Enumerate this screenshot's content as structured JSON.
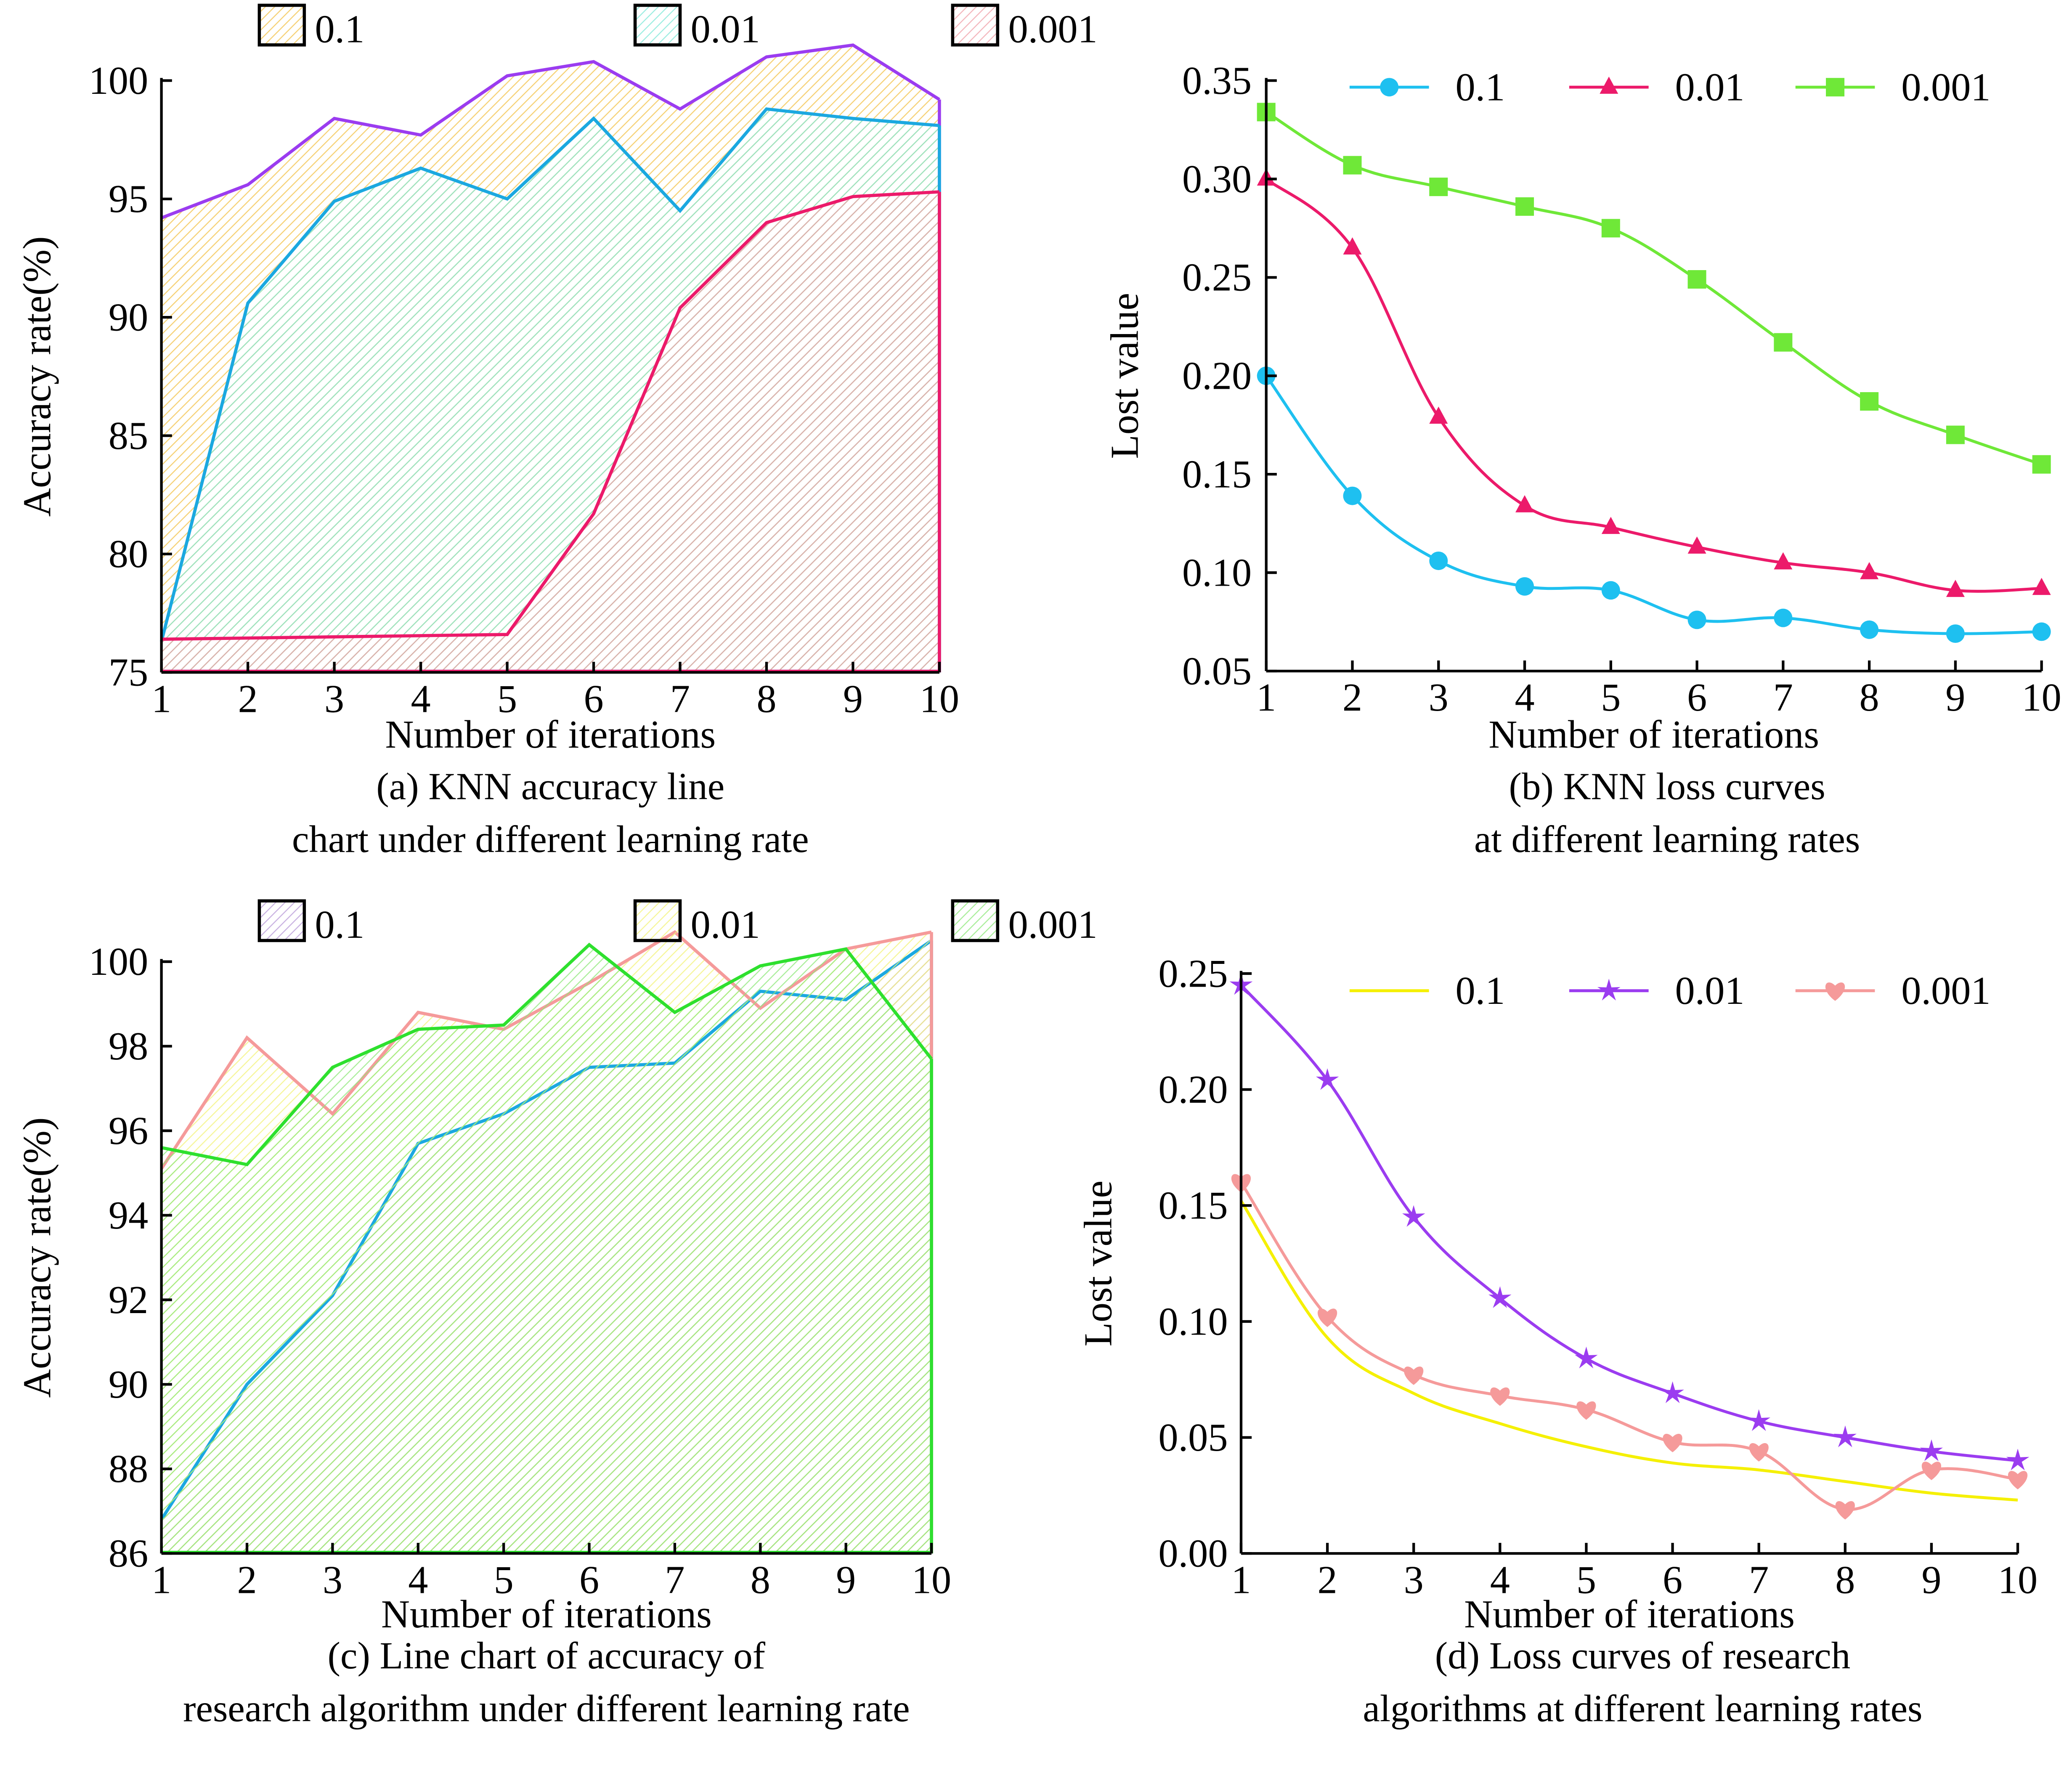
{
  "chart_data": [
    {
      "id": "a",
      "type": "area",
      "caption": [
        "(a) KNN accuracy line",
        "chart under different learning rate"
      ],
      "xlabel": "Number of iterations",
      "ylabel": "Accuracy rate(%)",
      "x": [
        1,
        2,
        3,
        4,
        5,
        6,
        7,
        8,
        9,
        10
      ],
      "xticks": [
        "1",
        "2",
        "3",
        "4",
        "5",
        "6",
        "7",
        "8",
        "9",
        "10"
      ],
      "ylim": [
        75,
        100
      ],
      "yticks": [
        75,
        80,
        85,
        90,
        95,
        100
      ],
      "ytick_labels": [
        "75",
        "80",
        "85",
        "90",
        "95",
        "100"
      ],
      "legend_position": "top",
      "series": [
        {
          "name": "0.1",
          "line_color": "#9b3cf0",
          "fill_color": "#f2c24a",
          "values": [
            94.2,
            95.6,
            98.4,
            97.7,
            100.2,
            100.8,
            98.8,
            101.0,
            101.5,
            99.2
          ]
        },
        {
          "name": "0.01",
          "line_color": "#1ba8e0",
          "fill_color": "#7fe8d8",
          "values": [
            76.3,
            90.6,
            94.9,
            96.3,
            95.0,
            98.4,
            94.5,
            98.8,
            98.4,
            98.1
          ]
        },
        {
          "name": "0.001",
          "line_color": "#ec1a6a",
          "fill_color": "#f0a0a8",
          "values": [
            76.4,
            76.45,
            76.5,
            76.55,
            76.6,
            81.7,
            90.4,
            94.0,
            95.1,
            95.3
          ]
        }
      ]
    },
    {
      "id": "b",
      "type": "line",
      "caption": [
        "(b) KNN loss curves",
        "at different learning rates"
      ],
      "xlabel": "Number of iterations",
      "ylabel": "Lost value",
      "x": [
        1,
        2,
        3,
        4,
        5,
        6,
        7,
        8,
        9,
        10
      ],
      "xticks": [
        "1",
        "2",
        "3",
        "4",
        "5",
        "6",
        "7",
        "8",
        "9",
        "10"
      ],
      "ylim": [
        0.05,
        0.35
      ],
      "yticks": [
        0.05,
        0.1,
        0.15,
        0.2,
        0.25,
        0.3,
        0.35
      ],
      "ytick_labels": [
        "0.05",
        "0.10",
        "0.15",
        "0.20",
        "0.25",
        "0.30",
        "0.35"
      ],
      "legend_position": "top",
      "series": [
        {
          "name": "0.1",
          "color": "#1ec0f0",
          "marker": "circle",
          "values": [
            0.2,
            0.139,
            0.106,
            0.093,
            0.091,
            0.076,
            0.077,
            0.071,
            0.069,
            0.07
          ]
        },
        {
          "name": "0.01",
          "color": "#ec1a6a",
          "marker": "triangle",
          "values": [
            0.3,
            0.265,
            0.179,
            0.134,
            0.123,
            0.113,
            0.105,
            0.1,
            0.091,
            0.092
          ]
        },
        {
          "name": "0.001",
          "color": "#6fe838",
          "marker": "square",
          "values": [
            0.334,
            0.307,
            0.296,
            0.286,
            0.275,
            0.249,
            0.217,
            0.187,
            0.17,
            0.155
          ]
        }
      ]
    },
    {
      "id": "c",
      "type": "area",
      "caption": [
        "(c) Line chart of accuracy of",
        "research algorithm under different learning rate"
      ],
      "xlabel": "Number of iterations",
      "ylabel": "Accuracy rate(%)",
      "x": [
        1,
        2,
        3,
        4,
        5,
        6,
        7,
        8,
        9,
        10
      ],
      "xticks": [
        "1",
        "2",
        "3",
        "4",
        "5",
        "6",
        "7",
        "8",
        "9",
        "10"
      ],
      "ylim": [
        86,
        100
      ],
      "yticks": [
        86,
        88,
        90,
        92,
        94,
        96,
        98,
        100
      ],
      "ytick_labels": [
        "86",
        "88",
        "90",
        "92",
        "94",
        "96",
        "98",
        "100"
      ],
      "legend_position": "top",
      "series": [
        {
          "name": "0.1",
          "line_color": "#1ba8e0",
          "fill_color": "#b89ad8",
          "values": [
            86.8,
            90.0,
            92.1,
            95.7,
            96.4,
            97.5,
            97.6,
            99.3,
            99.1,
            100.5
          ]
        },
        {
          "name": "0.01",
          "line_color": "#f59a9a",
          "fill_color": "#f2f27a",
          "values": [
            95.1,
            98.2,
            96.4,
            98.8,
            98.4,
            99.5,
            100.7,
            98.9,
            100.3,
            100.7
          ]
        },
        {
          "name": "0.001",
          "line_color": "#2ee02e",
          "fill_color": "#8ee87a",
          "values": [
            95.6,
            95.2,
            97.5,
            98.4,
            98.5,
            100.4,
            98.8,
            99.9,
            100.3,
            97.7
          ]
        }
      ]
    },
    {
      "id": "d",
      "type": "line",
      "caption": [
        "(d) Loss curves of research",
        "algorithms at different learning rates"
      ],
      "xlabel": "Number of iterations",
      "ylabel": "Lost value",
      "x": [
        1,
        2,
        3,
        4,
        5,
        6,
        7,
        8,
        9,
        10
      ],
      "xticks": [
        "1",
        "2",
        "3",
        "4",
        "5",
        "6",
        "7",
        "8",
        "9",
        "10"
      ],
      "ylim": [
        0.0,
        0.25
      ],
      "yticks": [
        0.0,
        0.05,
        0.1,
        0.15,
        0.2,
        0.25
      ],
      "ytick_labels": [
        "0.00",
        "0.05",
        "0.10",
        "0.15",
        "0.20",
        "0.25"
      ],
      "legend_position": "top",
      "series": [
        {
          "name": "0.1",
          "color": "#f5f000",
          "marker": "crescent",
          "values": [
            0.152,
            0.093,
            0.069,
            0.056,
            0.046,
            0.039,
            0.036,
            0.031,
            0.026,
            0.023
          ]
        },
        {
          "name": "0.01",
          "color": "#9b3cf0",
          "marker": "star",
          "values": [
            0.245,
            0.204,
            0.145,
            0.11,
            0.084,
            0.069,
            0.057,
            0.05,
            0.044,
            0.04
          ]
        },
        {
          "name": "0.001",
          "color": "#f59a9a",
          "marker": "heart",
          "values": [
            0.16,
            0.102,
            0.077,
            0.068,
            0.062,
            0.048,
            0.044,
            0.019,
            0.036,
            0.032
          ]
        }
      ]
    }
  ]
}
